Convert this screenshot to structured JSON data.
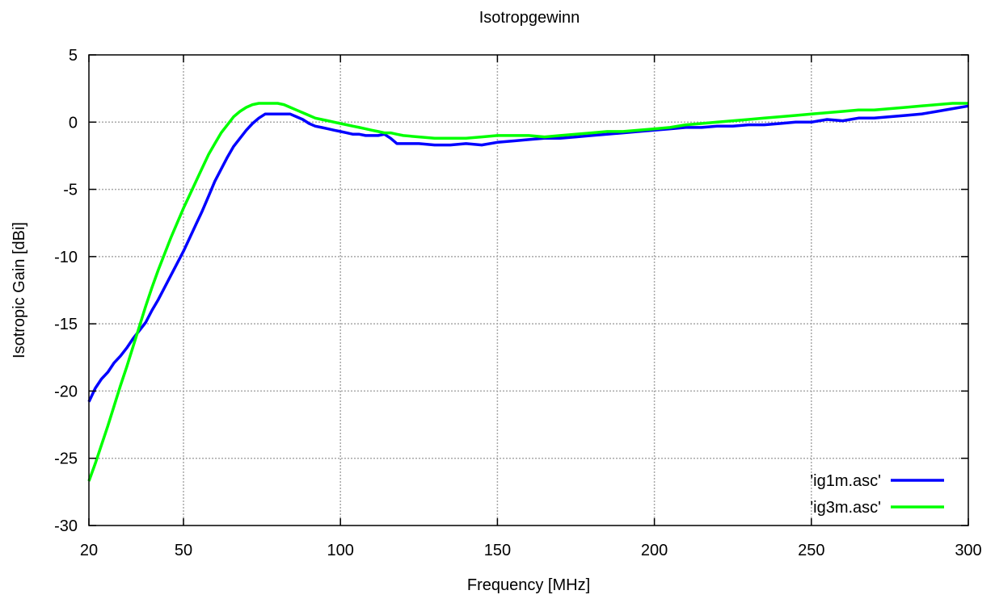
{
  "chart_data": {
    "type": "line",
    "title": "Isotropgewinn",
    "xlabel": "Frequency [MHz]",
    "ylabel": "Isotropic Gain [dBi]",
    "xlim": [
      20,
      300
    ],
    "ylim": [
      -30,
      5
    ],
    "x_ticks": [
      20,
      50,
      100,
      150,
      200,
      250,
      300
    ],
    "y_ticks": [
      -30,
      -25,
      -20,
      -15,
      -10,
      -5,
      0,
      5
    ],
    "grid": true,
    "legend_position": "bottom-right",
    "series": [
      {
        "name": "'ig1m.asc'",
        "color": "#0000ff",
        "x": [
          20,
          22,
          24,
          26,
          28,
          30,
          32,
          34,
          36,
          38,
          40,
          42,
          44,
          46,
          48,
          50,
          52,
          54,
          56,
          58,
          60,
          62,
          64,
          66,
          68,
          70,
          72,
          74,
          76,
          78,
          80,
          82,
          84,
          86,
          88,
          90,
          92,
          94,
          96,
          98,
          100,
          102,
          104,
          106,
          108,
          110,
          112,
          114,
          116,
          118,
          120,
          125,
          130,
          135,
          140,
          145,
          150,
          155,
          160,
          165,
          170,
          175,
          180,
          185,
          190,
          195,
          200,
          205,
          210,
          215,
          220,
          225,
          230,
          235,
          240,
          245,
          250,
          255,
          260,
          265,
          270,
          275,
          280,
          285,
          290,
          295,
          300
        ],
        "y": [
          -20.8,
          -19.8,
          -19.1,
          -18.6,
          -17.9,
          -17.4,
          -16.8,
          -16.1,
          -15.5,
          -14.9,
          -14.0,
          -13.2,
          -12.3,
          -11.4,
          -10.5,
          -9.6,
          -8.6,
          -7.6,
          -6.6,
          -5.5,
          -4.4,
          -3.5,
          -2.6,
          -1.8,
          -1.2,
          -0.6,
          -0.1,
          0.3,
          0.6,
          0.6,
          0.6,
          0.6,
          0.6,
          0.4,
          0.2,
          -0.1,
          -0.3,
          -0.4,
          -0.5,
          -0.6,
          -0.7,
          -0.8,
          -0.9,
          -0.9,
          -1.0,
          -1.0,
          -1.0,
          -0.9,
          -1.2,
          -1.6,
          -1.6,
          -1.6,
          -1.7,
          -1.7,
          -1.6,
          -1.7,
          -1.5,
          -1.4,
          -1.3,
          -1.2,
          -1.2,
          -1.1,
          -1.0,
          -0.9,
          -0.8,
          -0.7,
          -0.6,
          -0.5,
          -0.4,
          -0.4,
          -0.3,
          -0.3,
          -0.2,
          -0.2,
          -0.1,
          0.0,
          0.0,
          0.2,
          0.1,
          0.3,
          0.3,
          0.4,
          0.5,
          0.6,
          0.8,
          1.0,
          1.2
        ]
      },
      {
        "name": "'ig3m.asc'",
        "color": "#00ff00",
        "x": [
          20,
          22,
          24,
          26,
          28,
          30,
          32,
          34,
          36,
          38,
          40,
          42,
          44,
          46,
          48,
          50,
          52,
          54,
          56,
          58,
          60,
          62,
          64,
          66,
          68,
          70,
          72,
          74,
          76,
          78,
          80,
          82,
          84,
          86,
          88,
          90,
          92,
          94,
          96,
          98,
          100,
          102,
          104,
          106,
          108,
          110,
          112,
          114,
          116,
          118,
          120,
          125,
          130,
          135,
          140,
          145,
          150,
          155,
          160,
          165,
          170,
          175,
          180,
          185,
          190,
          195,
          200,
          205,
          210,
          215,
          220,
          225,
          230,
          235,
          240,
          245,
          250,
          255,
          260,
          265,
          270,
          275,
          280,
          285,
          290,
          295,
          300
        ],
        "y": [
          -26.7,
          -25.4,
          -24.0,
          -22.6,
          -21.1,
          -19.6,
          -18.2,
          -16.7,
          -15.2,
          -13.7,
          -12.3,
          -11.0,
          -9.8,
          -8.6,
          -7.5,
          -6.4,
          -5.4,
          -4.4,
          -3.4,
          -2.4,
          -1.6,
          -0.8,
          -0.2,
          0.4,
          0.8,
          1.1,
          1.3,
          1.4,
          1.4,
          1.4,
          1.4,
          1.3,
          1.1,
          0.9,
          0.7,
          0.5,
          0.3,
          0.2,
          0.1,
          0.0,
          -0.1,
          -0.2,
          -0.3,
          -0.4,
          -0.5,
          -0.6,
          -0.7,
          -0.8,
          -0.8,
          -0.9,
          -1.0,
          -1.1,
          -1.2,
          -1.2,
          -1.2,
          -1.1,
          -1.0,
          -1.0,
          -1.0,
          -1.1,
          -1.0,
          -0.9,
          -0.8,
          -0.7,
          -0.7,
          -0.6,
          -0.5,
          -0.4,
          -0.2,
          -0.1,
          0.0,
          0.1,
          0.2,
          0.3,
          0.4,
          0.5,
          0.6,
          0.7,
          0.8,
          0.9,
          0.9,
          1.0,
          1.1,
          1.2,
          1.3,
          1.4,
          1.4
        ]
      }
    ]
  }
}
